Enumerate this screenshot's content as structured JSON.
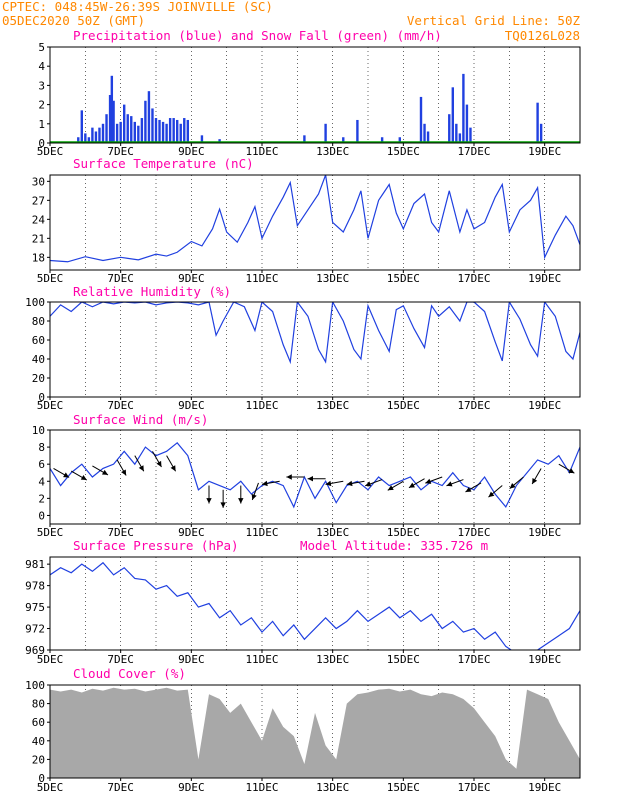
{
  "header": {
    "location": "CPTEC:  048:45W-26:39S  JOINVILLE (SC)",
    "datetime": "05DEC2020 50Z (GMT)",
    "grid_note": "Vertical Grid Line: 50Z",
    "model_code": "TQ0126L028"
  },
  "panels": {
    "precip": {
      "title": "Precipitation (blue) and Snow Fall (green) (mm/h)"
    },
    "temp": {
      "title": "Surface Temperature (nC)"
    },
    "rh": {
      "title": "Relative Humidity (%)"
    },
    "wind": {
      "title": "Surface Wind (m/s)"
    },
    "pressure": {
      "title": "Surface Pressure (hPa)",
      "altitude_text": "Model Altitude: 335.726 m"
    },
    "cloud": {
      "title": "Cloud Cover (%)"
    }
  },
  "colors": {
    "line": "#2040e0",
    "bar": "#2040e0",
    "snow": "#00a000",
    "cloud": "#a8a8a8",
    "grid": "#000000"
  },
  "chart_data": [
    {
      "type": "bar",
      "title": "Precipitation (blue) and Snow Fall (green) (mm/h)",
      "x_axis": {
        "start_day": 5,
        "end_day": 20,
        "tick_labels": [
          "5DEC",
          "7DEC",
          "9DEC",
          "11DEC",
          "13DEC",
          "15DEC",
          "17DEC",
          "19DEC"
        ],
        "tick_days": [
          5,
          7,
          9,
          11,
          13,
          15,
          17,
          19
        ]
      },
      "ylim": [
        0,
        5
      ],
      "yticks": [
        0,
        1,
        2,
        3,
        4,
        5
      ],
      "x": [
        5.8,
        5.9,
        6.0,
        6.1,
        6.2,
        6.3,
        6.4,
        6.5,
        6.6,
        6.7,
        6.75,
        6.8,
        6.9,
        7.0,
        7.1,
        7.2,
        7.3,
        7.4,
        7.5,
        7.6,
        7.7,
        7.8,
        7.9,
        8.0,
        8.1,
        8.2,
        8.3,
        8.4,
        8.5,
        8.6,
        8.7,
        8.8,
        8.9,
        9.3,
        9.8,
        12.2,
        12.8,
        13.3,
        13.7,
        14.4,
        14.9,
        15.5,
        15.6,
        15.7,
        16.3,
        16.4,
        16.5,
        16.6,
        16.7,
        16.8,
        16.9,
        18.8,
        18.9
      ],
      "values": [
        0.3,
        1.7,
        0.5,
        0.3,
        0.8,
        0.6,
        0.8,
        1.0,
        1.5,
        2.5,
        3.5,
        2.2,
        1.0,
        1.1,
        2.0,
        1.5,
        1.4,
        1.1,
        0.9,
        1.3,
        2.2,
        2.7,
        1.8,
        1.3,
        1.2,
        1.1,
        1.0,
        1.3,
        1.3,
        1.2,
        1.0,
        1.3,
        1.2,
        0.4,
        0.2,
        0.4,
        1.0,
        0.3,
        1.2,
        0.3,
        0.3,
        2.4,
        1.0,
        0.6,
        1.5,
        2.9,
        1.0,
        0.5,
        3.6,
        2.0,
        0.8,
        2.1,
        1.0
      ],
      "snow": 0
    },
    {
      "type": "line",
      "title": "Surface Temperature (nC)",
      "ylim": [
        16,
        31
      ],
      "yticks": [
        18,
        21,
        24,
        27,
        30
      ],
      "x": [
        5.0,
        5.5,
        6.0,
        6.5,
        7.0,
        7.5,
        8.0,
        8.3,
        8.6,
        9.0,
        9.3,
        9.6,
        9.8,
        10.0,
        10.3,
        10.6,
        10.8,
        11.0,
        11.3,
        11.6,
        11.8,
        12.0,
        12.3,
        12.6,
        12.8,
        13.0,
        13.3,
        13.6,
        13.8,
        14.0,
        14.3,
        14.6,
        14.8,
        15.0,
        15.3,
        15.6,
        15.8,
        16.0,
        16.3,
        16.6,
        16.8,
        17.0,
        17.3,
        17.6,
        17.8,
        18.0,
        18.3,
        18.6,
        18.8,
        19.0,
        19.3,
        19.6,
        19.8,
        20.0
      ],
      "values": [
        17.5,
        17.3,
        18.1,
        17.5,
        18.0,
        17.6,
        18.5,
        18.2,
        18.8,
        20.5,
        19.8,
        22.5,
        25.6,
        22.0,
        20.4,
        23.5,
        26.0,
        21.0,
        24.5,
        27.5,
        29.8,
        23.0,
        25.5,
        28.0,
        31.0,
        23.5,
        22.0,
        25.5,
        28.5,
        21.0,
        27.0,
        29.5,
        25.0,
        22.5,
        26.5,
        28.0,
        23.5,
        22.0,
        28.5,
        22.0,
        25.5,
        22.5,
        23.5,
        27.5,
        29.5,
        22.0,
        25.5,
        27.0,
        29.0,
        18.0,
        21.5,
        24.5,
        23.0,
        20.0
      ]
    },
    {
      "type": "line",
      "title": "Relative Humidity (%)",
      "ylim": [
        0,
        100
      ],
      "yticks": [
        0,
        20,
        40,
        60,
        80,
        100
      ],
      "x": [
        5.0,
        5.3,
        5.6,
        5.9,
        6.2,
        6.5,
        6.8,
        7.1,
        7.4,
        7.7,
        8.0,
        8.3,
        8.6,
        8.9,
        9.2,
        9.5,
        9.7,
        9.9,
        10.2,
        10.5,
        10.8,
        11.0,
        11.3,
        11.6,
        11.8,
        12.0,
        12.3,
        12.6,
        12.8,
        13.0,
        13.3,
        13.6,
        13.8,
        14.0,
        14.3,
        14.6,
        14.8,
        15.0,
        15.3,
        15.6,
        15.8,
        16.0,
        16.3,
        16.6,
        16.8,
        17.0,
        17.3,
        17.6,
        17.8,
        18.0,
        18.3,
        18.6,
        18.8,
        19.0,
        19.3,
        19.6,
        19.8,
        20.0
      ],
      "values": [
        85,
        97,
        90,
        100,
        95,
        100,
        98,
        100,
        99,
        100,
        97,
        99,
        100,
        99,
        97,
        100,
        65,
        80,
        100,
        95,
        70,
        100,
        90,
        55,
        37,
        100,
        85,
        50,
        37,
        100,
        80,
        50,
        40,
        96,
        70,
        48,
        92,
        96,
        72,
        52,
        96,
        85,
        95,
        80,
        100,
        100,
        90,
        58,
        38,
        100,
        82,
        55,
        43,
        100,
        85,
        48,
        40,
        68
      ]
    },
    {
      "type": "line",
      "title": "Surface Wind (m/s)",
      "ylim": [
        -1,
        10
      ],
      "yticks": [
        0,
        2,
        4,
        6,
        8,
        10
      ],
      "x": [
        5.0,
        5.3,
        5.6,
        5.9,
        6.2,
        6.5,
        6.8,
        7.1,
        7.4,
        7.7,
        8.0,
        8.3,
        8.6,
        8.9,
        9.2,
        9.5,
        9.8,
        10.1,
        10.4,
        10.7,
        11.0,
        11.3,
        11.6,
        11.9,
        12.2,
        12.5,
        12.8,
        13.1,
        13.4,
        13.7,
        14.0,
        14.3,
        14.6,
        14.9,
        15.2,
        15.5,
        15.8,
        16.1,
        16.4,
        16.7,
        17.0,
        17.3,
        17.6,
        17.9,
        18.2,
        18.5,
        18.8,
        19.1,
        19.4,
        19.7,
        20.0
      ],
      "values": [
        5.5,
        3.5,
        5.0,
        6.0,
        4.5,
        5.5,
        6.0,
        7.5,
        6.0,
        8.0,
        7.0,
        7.5,
        8.5,
        7.0,
        3.0,
        4.0,
        3.5,
        3.0,
        4.0,
        2.5,
        3.5,
        4.0,
        3.5,
        1.0,
        4.5,
        2.0,
        4.0,
        1.5,
        3.5,
        4.0,
        3.0,
        4.5,
        3.5,
        4.0,
        4.5,
        3.0,
        4.0,
        3.5,
        5.0,
        3.5,
        3.0,
        4.5,
        2.5,
        1.0,
        3.5,
        5.0,
        6.5,
        6.0,
        7.0,
        5.0,
        8.0
      ],
      "arrows": {
        "x": [
          5.1,
          5.6,
          6.2,
          6.9,
          7.4,
          7.9,
          8.3,
          9.5,
          9.9,
          10.4,
          10.9,
          11.5,
          12.2,
          12.8,
          13.3,
          13.9,
          14.4,
          15.0,
          15.6,
          16.1,
          16.7,
          17.2,
          17.8,
          18.4,
          18.9,
          19.4
        ],
        "speed": [
          5.5,
          5.2,
          5.8,
          6.5,
          7.0,
          7.5,
          7.0,
          3.5,
          3.0,
          3.5,
          3.8,
          4.0,
          4.5,
          4.3,
          4.0,
          4.0,
          4.2,
          4.0,
          4.3,
          4.5,
          4.2,
          3.8,
          3.5,
          4.5,
          5.5,
          6.0
        ],
        "dir_deg": [
          120,
          120,
          120,
          150,
          150,
          150,
          150,
          180,
          180,
          180,
          200,
          260,
          270,
          270,
          260,
          260,
          250,
          240,
          240,
          250,
          250,
          240,
          230,
          230,
          210,
          120
        ]
      }
    },
    {
      "type": "line",
      "title": "Surface Pressure (hPa)",
      "ylim": [
        969,
        982
      ],
      "yticks": [
        969,
        972,
        975,
        978,
        981
      ],
      "x": [
        5.0,
        5.3,
        5.6,
        5.9,
        6.2,
        6.5,
        6.8,
        7.1,
        7.4,
        7.7,
        8.0,
        8.3,
        8.6,
        8.9,
        9.2,
        9.5,
        9.8,
        10.1,
        10.4,
        10.7,
        11.0,
        11.3,
        11.6,
        11.9,
        12.2,
        12.5,
        12.8,
        13.1,
        13.4,
        13.7,
        14.0,
        14.3,
        14.6,
        14.9,
        15.2,
        15.5,
        15.8,
        16.1,
        16.4,
        16.7,
        17.0,
        17.3,
        17.6,
        17.9,
        18.2,
        18.5,
        18.8,
        19.1,
        19.4,
        19.7,
        20.0
      ],
      "values": [
        979.5,
        980.5,
        979.8,
        981.0,
        980.0,
        981.2,
        979.5,
        980.5,
        979.0,
        978.8,
        977.5,
        978.0,
        976.5,
        977.0,
        975.0,
        975.5,
        973.5,
        974.5,
        972.5,
        973.5,
        971.5,
        973.0,
        971.0,
        972.5,
        970.5,
        972.0,
        973.5,
        972.0,
        973.0,
        974.5,
        973.0,
        974.0,
        975.0,
        973.5,
        974.5,
        973.0,
        974.0,
        972.0,
        973.0,
        971.5,
        972.0,
        970.5,
        971.5,
        969.5,
        968.5,
        968.0,
        969.0,
        970.0,
        971.0,
        972.0,
        974.5
      ]
    },
    {
      "type": "area",
      "title": "Cloud Cover (%)",
      "ylim": [
        0,
        100
      ],
      "yticks": [
        0,
        20,
        40,
        60,
        80,
        100
      ],
      "x": [
        5.0,
        5.3,
        5.6,
        5.9,
        6.2,
        6.5,
        6.8,
        7.1,
        7.4,
        7.7,
        8.0,
        8.3,
        8.6,
        8.9,
        9.2,
        9.5,
        9.8,
        10.1,
        10.4,
        10.7,
        11.0,
        11.3,
        11.6,
        11.9,
        12.2,
        12.5,
        12.8,
        13.1,
        13.4,
        13.7,
        14.0,
        14.3,
        14.6,
        14.9,
        15.2,
        15.5,
        15.8,
        16.1,
        16.4,
        16.7,
        17.0,
        17.3,
        17.6,
        17.9,
        18.2,
        18.5,
        18.8,
        19.1,
        19.4,
        19.7,
        20.0
      ],
      "values": [
        95,
        93,
        95,
        92,
        96,
        94,
        97,
        95,
        96,
        93,
        95,
        97,
        94,
        95,
        20,
        90,
        85,
        70,
        80,
        60,
        40,
        75,
        55,
        45,
        15,
        70,
        35,
        20,
        80,
        90,
        92,
        95,
        96,
        93,
        95,
        90,
        88,
        92,
        90,
        85,
        75,
        60,
        45,
        20,
        10,
        95,
        90,
        85,
        60,
        40,
        20
      ]
    }
  ]
}
